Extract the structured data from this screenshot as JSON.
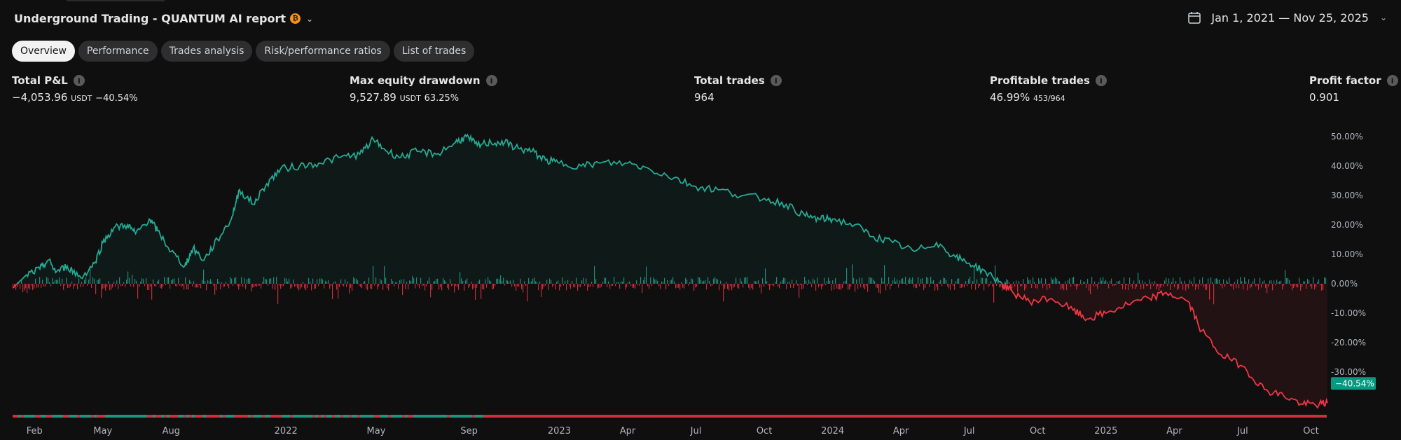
{
  "header": {
    "title": "Underground Trading - QUANTUM AI report",
    "coin_symbol": "₿",
    "date_range": "Jan 1, 2021 — Nov 25, 2025"
  },
  "tabs": [
    {
      "label": "Overview",
      "active": true
    },
    {
      "label": "Performance",
      "active": false
    },
    {
      "label": "Trades analysis",
      "active": false
    },
    {
      "label": "Risk/performance ratios",
      "active": false
    },
    {
      "label": "List of trades",
      "active": false
    }
  ],
  "metrics": {
    "total_pnl": {
      "label": "Total P&L",
      "value": "−4,053.96",
      "unit": "USDT",
      "pct": "−40.54%"
    },
    "max_drawdown": {
      "label": "Max equity drawdown",
      "value": "9,527.89",
      "unit": "USDT",
      "pct": "63.25%"
    },
    "total_trades": {
      "label": "Total trades",
      "value": "964"
    },
    "profitable_trades": {
      "label": "Profitable trades",
      "value": "46.99%",
      "detail": "453/964"
    },
    "profit_factor": {
      "label": "Profit factor",
      "value": "0.901"
    }
  },
  "colors": {
    "positive": "#22ab94",
    "negative": "#f23645",
    "background": "#0f0f0f",
    "badge": "#089981"
  },
  "chart_data": {
    "type": "area",
    "series": [
      {
        "values": [
          [
            2021.0,
            -1.5
          ],
          [
            2021.05,
            3
          ],
          [
            2021.1,
            5
          ],
          [
            2021.13,
            8
          ],
          [
            2021.16,
            4
          ],
          [
            2021.2,
            6
          ],
          [
            2021.25,
            2
          ],
          [
            2021.3,
            7
          ],
          [
            2021.33,
            14
          ],
          [
            2021.37,
            19
          ],
          [
            2021.42,
            20
          ],
          [
            2021.45,
            17
          ],
          [
            2021.5,
            22
          ],
          [
            2021.53,
            18
          ],
          [
            2021.58,
            11
          ],
          [
            2021.63,
            6
          ],
          [
            2021.66,
            12
          ],
          [
            2021.7,
            8
          ],
          [
            2021.75,
            15
          ],
          [
            2021.8,
            22
          ],
          [
            2021.83,
            32
          ],
          [
            2021.88,
            27
          ],
          [
            2021.93,
            34
          ],
          [
            2021.98,
            39
          ],
          [
            2022.05,
            40
          ],
          [
            2022.12,
            41
          ],
          [
            2022.2,
            43
          ],
          [
            2022.27,
            44
          ],
          [
            2022.32,
            49
          ],
          [
            2022.37,
            45
          ],
          [
            2022.42,
            43
          ],
          [
            2022.48,
            45
          ],
          [
            2022.55,
            44
          ],
          [
            2022.62,
            48
          ],
          [
            2022.66,
            50
          ],
          [
            2022.7,
            47
          ],
          [
            2022.75,
            48
          ],
          [
            2022.8,
            48
          ],
          [
            2022.85,
            46
          ],
          [
            2022.9,
            45
          ],
          [
            2022.95,
            42
          ],
          [
            2023.0,
            41
          ],
          [
            2023.08,
            40
          ],
          [
            2023.15,
            41
          ],
          [
            2023.25,
            41
          ],
          [
            2023.33,
            39
          ],
          [
            2023.42,
            36
          ],
          [
            2023.5,
            33
          ],
          [
            2023.58,
            32
          ],
          [
            2023.67,
            30
          ],
          [
            2023.75,
            29
          ],
          [
            2023.83,
            27
          ],
          [
            2023.9,
            23
          ],
          [
            2023.95,
            22
          ],
          [
            2024.0,
            22
          ],
          [
            2024.08,
            20
          ],
          [
            2024.15,
            16
          ],
          [
            2024.22,
            14
          ],
          [
            2024.3,
            11
          ],
          [
            2024.38,
            14
          ],
          [
            2024.45,
            9
          ],
          [
            2024.5,
            7
          ],
          [
            2024.56,
            4
          ],
          [
            2024.62,
            0
          ],
          [
            2024.66,
            -3
          ],
          [
            2024.72,
            -6
          ],
          [
            2024.8,
            -5
          ],
          [
            2024.88,
            -9
          ],
          [
            2024.93,
            -12
          ],
          [
            2025.0,
            -10
          ],
          [
            2025.08,
            -7
          ],
          [
            2025.16,
            -5
          ],
          [
            2025.22,
            -3
          ],
          [
            2025.3,
            -6
          ],
          [
            2025.35,
            -16
          ],
          [
            2025.42,
            -24
          ],
          [
            2025.5,
            -28
          ],
          [
            2025.58,
            -36
          ],
          [
            2025.65,
            -38
          ],
          [
            2025.72,
            -41
          ],
          [
            2025.78,
            -41
          ],
          [
            2025.81,
            -40.54
          ]
        ]
      }
    ],
    "ylim": [
      -45,
      52
    ],
    "yticks": [
      "50.00%",
      "40.00%",
      "30.00%",
      "20.00%",
      "10.00%",
      "0.00%",
      "-10.00%",
      "-20.00%",
      "-30.00%"
    ],
    "ytick_values": [
      50,
      40,
      30,
      20,
      10,
      0,
      -10,
      -20,
      -30
    ],
    "xticks": [
      {
        "label": "Feb",
        "t": 2021.08
      },
      {
        "label": "May",
        "t": 2021.33
      },
      {
        "label": "Aug",
        "t": 2021.58
      },
      {
        "label": "2022",
        "t": 2022.0
      },
      {
        "label": "May",
        "t": 2022.33
      },
      {
        "label": "Sep",
        "t": 2022.67
      },
      {
        "label": "2023",
        "t": 2023.0
      },
      {
        "label": "Apr",
        "t": 2023.25
      },
      {
        "label": "Jul",
        "t": 2023.5
      },
      {
        "label": "Oct",
        "t": 2023.75
      },
      {
        "label": "2024",
        "t": 2024.0
      },
      {
        "label": "Apr",
        "t": 2024.25
      },
      {
        "label": "Jul",
        "t": 2024.5
      },
      {
        "label": "Oct",
        "t": 2024.75
      },
      {
        "label": "2025",
        "t": 2025.0
      },
      {
        "label": "Apr",
        "t": 2025.25
      },
      {
        "label": "Jul",
        "t": 2025.5
      },
      {
        "label": "Oct",
        "t": 2025.75
      }
    ],
    "xlim": [
      2021.0,
      2025.9
    ],
    "last_value_label": "−40.54%"
  }
}
